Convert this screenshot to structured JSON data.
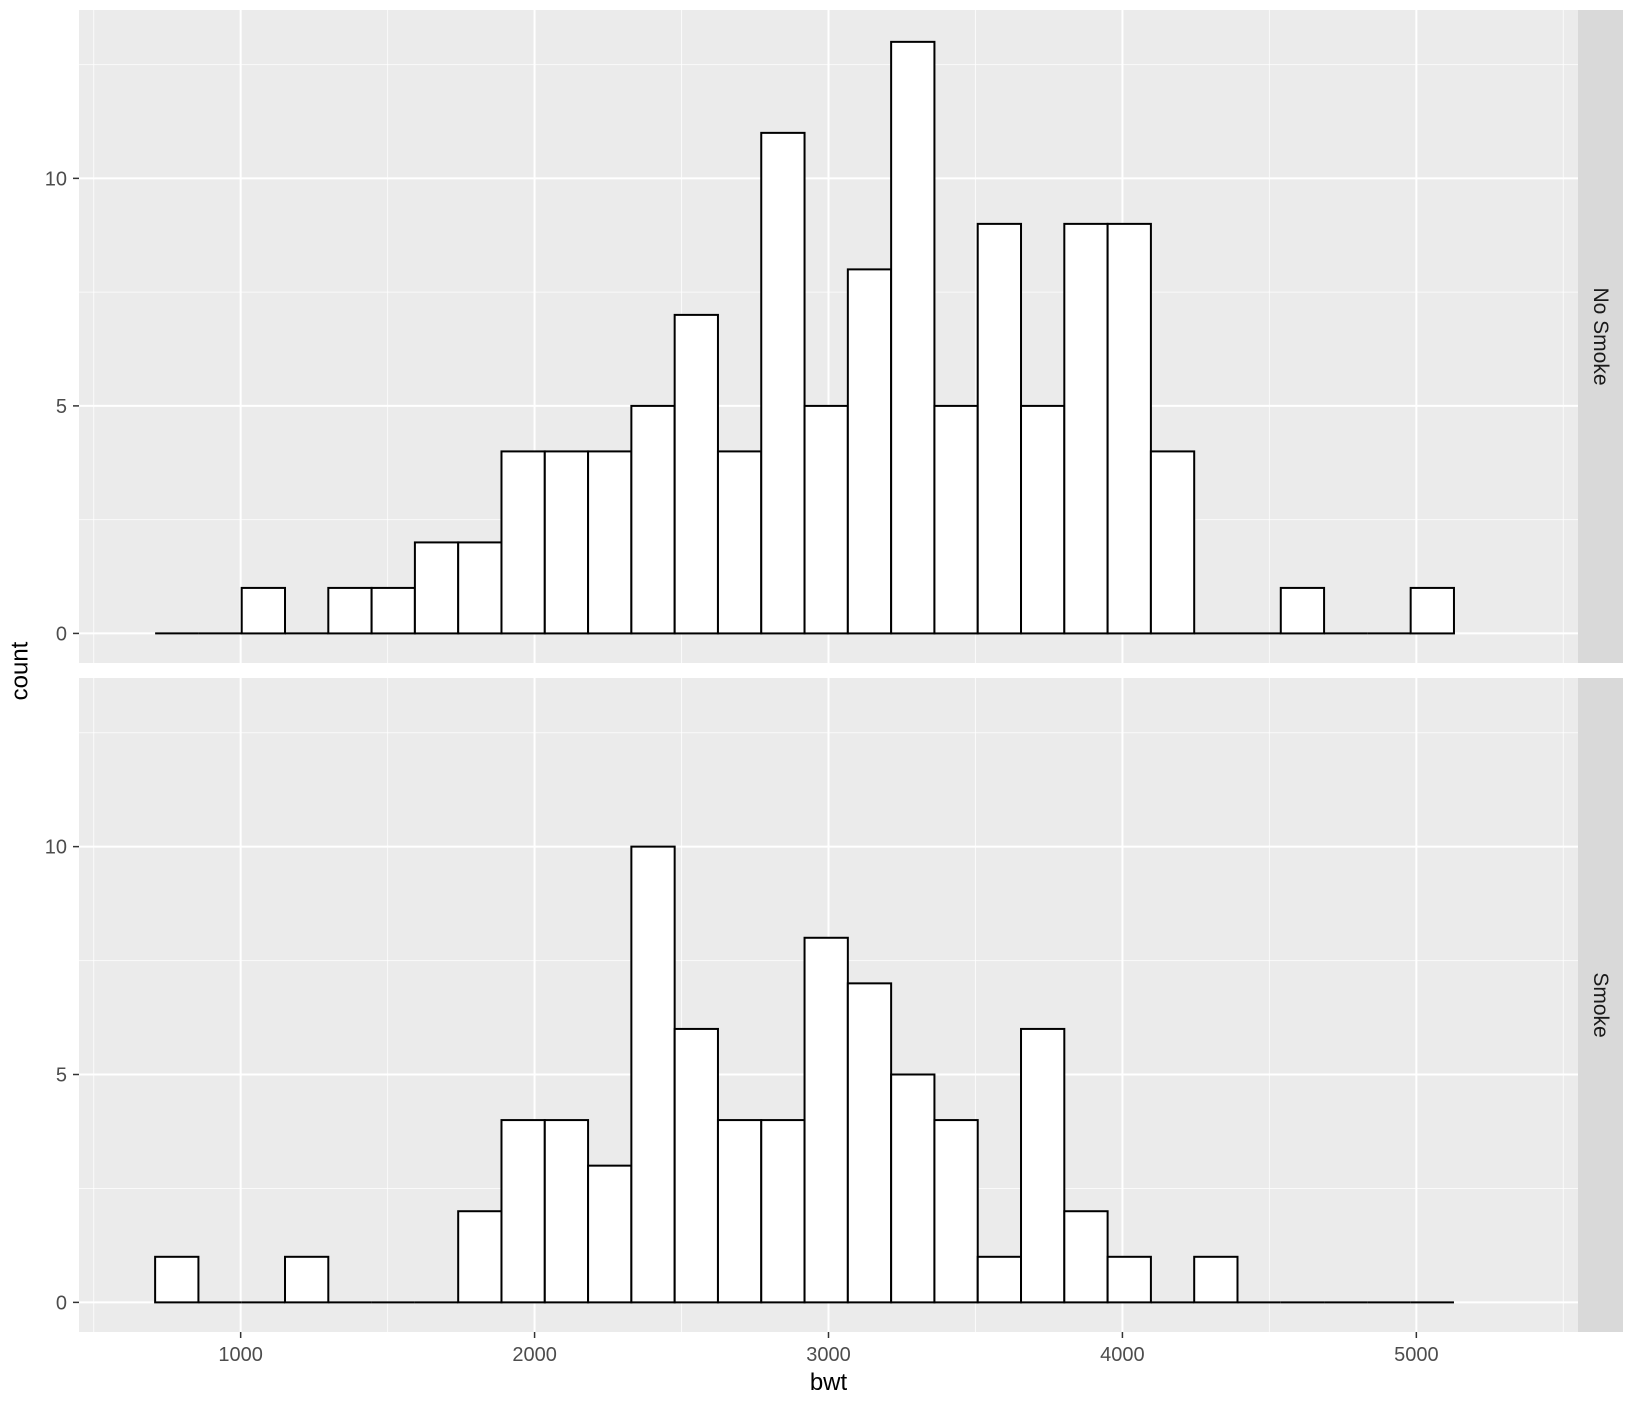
{
  "chart_data": {
    "type": "bar",
    "subtype": "faceted-histogram",
    "xlabel": "bwt",
    "ylabel": "count",
    "xlim": [
      450,
      5550
    ],
    "ylim": [
      -0.65,
      13.7
    ],
    "x_ticks": [
      1000,
      2000,
      3000,
      4000,
      5000
    ],
    "y_ticks": [
      0,
      5,
      10
    ],
    "bins": {
      "start": 709,
      "width": 147.3,
      "count": 30
    },
    "facets": [
      {
        "name": "No Smoke",
        "counts": [
          0,
          0,
          1,
          0,
          1,
          1,
          2,
          2,
          4,
          4,
          4,
          5,
          7,
          4,
          11,
          5,
          8,
          13,
          5,
          9,
          5,
          9,
          9,
          4,
          0,
          0,
          1,
          0,
          0,
          1
        ]
      },
      {
        "name": "Smoke",
        "counts": [
          1,
          0,
          0,
          1,
          0,
          0,
          0,
          2,
          4,
          4,
          3,
          10,
          6,
          4,
          4,
          8,
          7,
          5,
          4,
          1,
          6,
          2,
          1,
          0,
          1,
          0,
          0,
          0,
          0,
          0
        ]
      }
    ],
    "grid": true,
    "colors": {
      "panel_background": "#ebebeb",
      "grid_major": "#ffffff",
      "bar_fill": "#ffffff",
      "bar_stroke": "#000000",
      "strip_background": "#d9d9d9"
    }
  }
}
